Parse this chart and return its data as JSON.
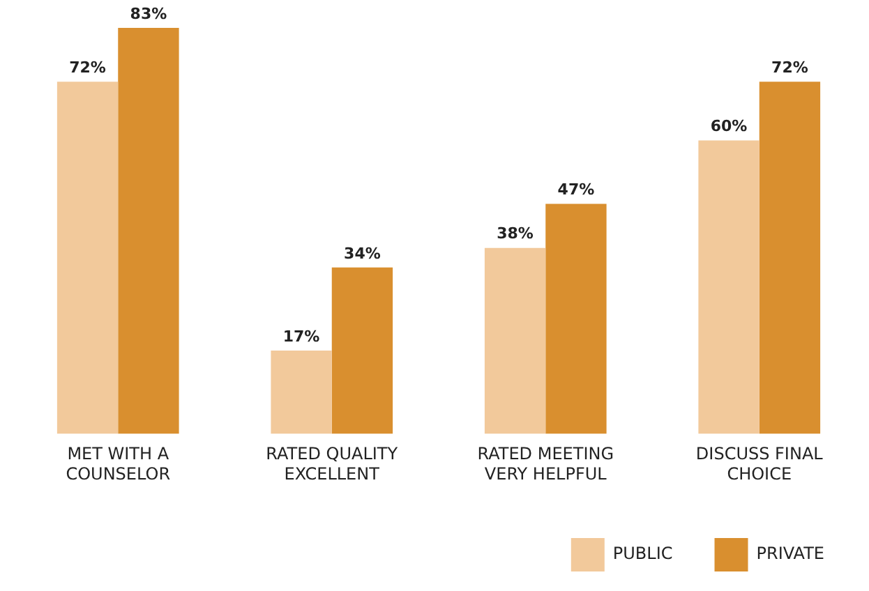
{
  "chart_data": {
    "type": "bar",
    "categories": [
      "MET WITH A COUNSELOR",
      "RATED QUALITY EXCELLENT",
      "RATED MEETING VERY HELPFUL",
      "DISCUSS FINAL CHOICE"
    ],
    "series": [
      {
        "name": "PUBLIC",
        "color": "#f2c99b",
        "values": [
          72,
          17,
          38,
          60
        ],
        "value_labels": [
          "72%",
          "17%",
          "38%",
          "60%"
        ]
      },
      {
        "name": "PRIVATE",
        "color": "#d98f2f",
        "values": [
          83,
          34,
          47,
          72
        ],
        "value_labels": [
          "83%",
          "34%",
          "47%",
          "72%"
        ]
      }
    ],
    "tick_labels": "x",
    "grid": false,
    "legend": "bottom right"
  }
}
